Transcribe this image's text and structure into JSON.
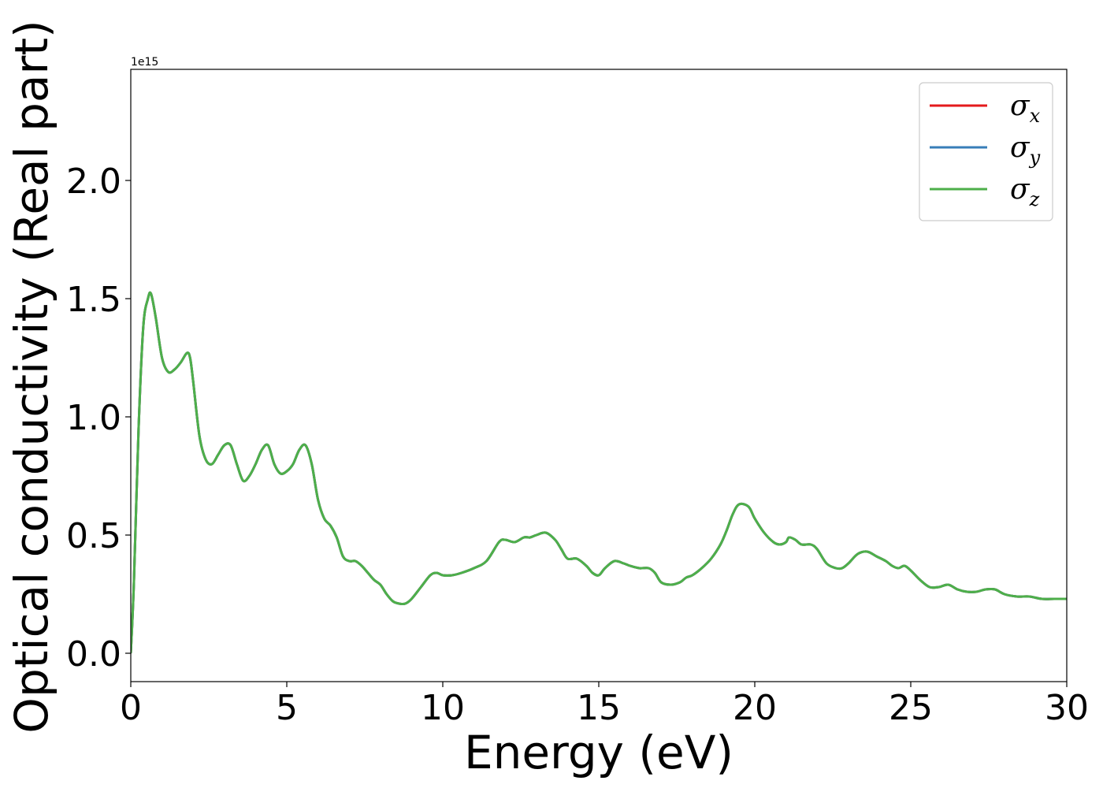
{
  "chart_data": {
    "type": "line",
    "xlabel": "Energy (eV)",
    "ylabel": "Optical conductivity (Real part)",
    "y_offset_label": "1e15",
    "xlim": [
      0,
      30
    ],
    "ylim": [
      -0.12,
      2.47
    ],
    "x_ticks": [
      0,
      5,
      10,
      15,
      20,
      25,
      30
    ],
    "x_tick_labels": [
      "0",
      "5",
      "10",
      "15",
      "20",
      "25",
      "30"
    ],
    "y_ticks": [
      0.0,
      0.5,
      1.0,
      1.5,
      2.0
    ],
    "y_tick_labels": [
      "0.0",
      "0.5",
      "1.0",
      "1.5",
      "2.0"
    ],
    "grid": false,
    "legend_position": "top-right",
    "x": [
      0,
      0.1,
      0.25,
      0.4,
      0.55,
      0.65,
      0.8,
      1.0,
      1.2,
      1.4,
      1.6,
      1.8,
      1.9,
      2.0,
      2.2,
      2.4,
      2.6,
      2.8,
      3.0,
      3.2,
      3.4,
      3.6,
      3.8,
      4.0,
      4.2,
      4.4,
      4.6,
      4.8,
      5.0,
      5.2,
      5.4,
      5.6,
      5.8,
      6.0,
      6.2,
      6.4,
      6.6,
      6.8,
      7.0,
      7.2,
      7.4,
      7.6,
      7.8,
      8.0,
      8.2,
      8.4,
      8.6,
      8.8,
      9.0,
      9.3,
      9.6,
      9.8,
      10.0,
      10.3,
      10.6,
      11.0,
      11.4,
      11.8,
      12.0,
      12.3,
      12.6,
      12.8,
      13.0,
      13.3,
      13.6,
      13.8,
      14.0,
      14.3,
      14.6,
      14.8,
      15.0,
      15.2,
      15.5,
      15.8,
      16.0,
      16.3,
      16.6,
      16.8,
      17.0,
      17.3,
      17.6,
      17.8,
      18.0,
      18.3,
      18.6,
      18.9,
      19.1,
      19.3,
      19.5,
      19.8,
      20.0,
      20.3,
      20.6,
      20.8,
      21.0,
      21.1,
      21.3,
      21.5,
      21.8,
      22.0,
      22.3,
      22.6,
      22.8,
      23.0,
      23.3,
      23.6,
      23.9,
      24.2,
      24.4,
      24.6,
      24.8,
      25.0,
      25.3,
      25.6,
      25.9,
      26.2,
      26.5,
      26.8,
      27.1,
      27.4,
      27.7,
      28.0,
      28.4,
      28.8,
      29.2,
      29.6,
      30.0
    ],
    "series": [
      {
        "name": "σx",
        "symbol": "σ",
        "subscript": "x",
        "color": "#e41a1c",
        "values": [
          0.0,
          0.3,
          0.95,
          1.38,
          1.5,
          1.52,
          1.42,
          1.25,
          1.19,
          1.2,
          1.23,
          1.27,
          1.25,
          1.15,
          0.92,
          0.82,
          0.8,
          0.84,
          0.88,
          0.88,
          0.8,
          0.73,
          0.75,
          0.8,
          0.86,
          0.88,
          0.8,
          0.76,
          0.77,
          0.8,
          0.86,
          0.88,
          0.8,
          0.65,
          0.57,
          0.54,
          0.49,
          0.41,
          0.39,
          0.39,
          0.37,
          0.34,
          0.31,
          0.29,
          0.25,
          0.22,
          0.21,
          0.21,
          0.23,
          0.28,
          0.33,
          0.34,
          0.33,
          0.33,
          0.34,
          0.36,
          0.39,
          0.47,
          0.48,
          0.47,
          0.49,
          0.49,
          0.5,
          0.51,
          0.48,
          0.44,
          0.4,
          0.4,
          0.37,
          0.34,
          0.33,
          0.36,
          0.39,
          0.38,
          0.37,
          0.36,
          0.36,
          0.34,
          0.3,
          0.29,
          0.3,
          0.32,
          0.33,
          0.36,
          0.4,
          0.46,
          0.52,
          0.59,
          0.63,
          0.62,
          0.57,
          0.51,
          0.47,
          0.46,
          0.47,
          0.49,
          0.48,
          0.46,
          0.46,
          0.44,
          0.38,
          0.36,
          0.36,
          0.38,
          0.42,
          0.43,
          0.41,
          0.39,
          0.37,
          0.36,
          0.37,
          0.35,
          0.31,
          0.28,
          0.28,
          0.29,
          0.27,
          0.26,
          0.26,
          0.27,
          0.27,
          0.25,
          0.24,
          0.24,
          0.23,
          0.23,
          0.23
        ]
      },
      {
        "name": "σy",
        "symbol": "σ",
        "subscript": "y",
        "color": "#377eb8",
        "values": [
          0.0,
          0.3,
          0.95,
          1.38,
          1.5,
          1.52,
          1.42,
          1.25,
          1.19,
          1.2,
          1.23,
          1.27,
          1.25,
          1.15,
          0.92,
          0.82,
          0.8,
          0.84,
          0.88,
          0.88,
          0.8,
          0.73,
          0.75,
          0.8,
          0.86,
          0.88,
          0.8,
          0.76,
          0.77,
          0.8,
          0.86,
          0.88,
          0.8,
          0.65,
          0.57,
          0.54,
          0.49,
          0.41,
          0.39,
          0.39,
          0.37,
          0.34,
          0.31,
          0.29,
          0.25,
          0.22,
          0.21,
          0.21,
          0.23,
          0.28,
          0.33,
          0.34,
          0.33,
          0.33,
          0.34,
          0.36,
          0.39,
          0.47,
          0.48,
          0.47,
          0.49,
          0.49,
          0.5,
          0.51,
          0.48,
          0.44,
          0.4,
          0.4,
          0.37,
          0.34,
          0.33,
          0.36,
          0.39,
          0.38,
          0.37,
          0.36,
          0.36,
          0.34,
          0.3,
          0.29,
          0.3,
          0.32,
          0.33,
          0.36,
          0.4,
          0.46,
          0.52,
          0.59,
          0.63,
          0.62,
          0.57,
          0.51,
          0.47,
          0.46,
          0.47,
          0.49,
          0.48,
          0.46,
          0.46,
          0.44,
          0.38,
          0.36,
          0.36,
          0.38,
          0.42,
          0.43,
          0.41,
          0.39,
          0.37,
          0.36,
          0.37,
          0.35,
          0.31,
          0.28,
          0.28,
          0.29,
          0.27,
          0.26,
          0.26,
          0.27,
          0.27,
          0.25,
          0.24,
          0.24,
          0.23,
          0.23,
          0.23
        ]
      },
      {
        "name": "σz",
        "symbol": "σ",
        "subscript": "z",
        "color": "#4daf4a",
        "values": [
          0.0,
          0.3,
          0.95,
          1.38,
          1.5,
          1.52,
          1.42,
          1.25,
          1.19,
          1.2,
          1.23,
          1.27,
          1.25,
          1.15,
          0.92,
          0.82,
          0.8,
          0.84,
          0.88,
          0.88,
          0.8,
          0.73,
          0.75,
          0.8,
          0.86,
          0.88,
          0.8,
          0.76,
          0.77,
          0.8,
          0.86,
          0.88,
          0.8,
          0.65,
          0.57,
          0.54,
          0.49,
          0.41,
          0.39,
          0.39,
          0.37,
          0.34,
          0.31,
          0.29,
          0.25,
          0.22,
          0.21,
          0.21,
          0.23,
          0.28,
          0.33,
          0.34,
          0.33,
          0.33,
          0.34,
          0.36,
          0.39,
          0.47,
          0.48,
          0.47,
          0.49,
          0.49,
          0.5,
          0.51,
          0.48,
          0.44,
          0.4,
          0.4,
          0.37,
          0.34,
          0.33,
          0.36,
          0.39,
          0.38,
          0.37,
          0.36,
          0.36,
          0.34,
          0.3,
          0.29,
          0.3,
          0.32,
          0.33,
          0.36,
          0.4,
          0.46,
          0.52,
          0.59,
          0.63,
          0.62,
          0.57,
          0.51,
          0.47,
          0.46,
          0.47,
          0.49,
          0.48,
          0.46,
          0.46,
          0.44,
          0.38,
          0.36,
          0.36,
          0.38,
          0.42,
          0.43,
          0.41,
          0.39,
          0.37,
          0.36,
          0.37,
          0.35,
          0.31,
          0.28,
          0.28,
          0.29,
          0.27,
          0.26,
          0.26,
          0.27,
          0.27,
          0.25,
          0.24,
          0.24,
          0.23,
          0.23,
          0.23
        ]
      }
    ]
  }
}
